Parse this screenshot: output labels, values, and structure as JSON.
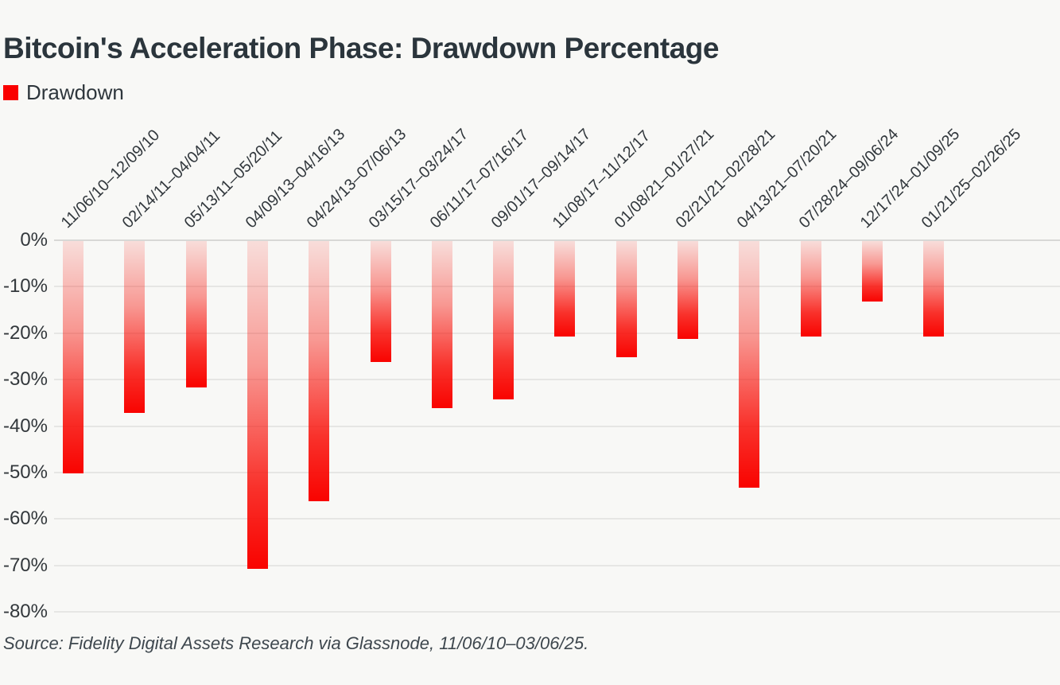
{
  "title": "Bitcoin's Acceleration Phase: Drawdown Percentage",
  "legend": {
    "label": "Drawdown",
    "color": "#fa0000"
  },
  "source": "Source: Fidelity Digital Assets Research via Glassnode, 11/06/10–03/06/25.",
  "colors": {
    "background": "#f8f8f6",
    "bar_red": "#f90300",
    "bar_top_tint": "#f8dbd8",
    "gridline": "#e6e6e4",
    "zero_line": "#d8d8d6",
    "title_text": "#2b353c",
    "axis_text": "#33383c"
  },
  "chart_data": {
    "type": "bar",
    "orientation": "vertical-negative",
    "title": "Bitcoin's Acceleration Phase: Drawdown Percentage",
    "categories": [
      "11/06/10–12/09/10",
      "02/14/11–04/04/11",
      "05/13/11–05/20/11",
      "04/09/13–04/16/13",
      "04/24/13–07/06/13",
      "03/15/17–03/24/17",
      "06/11/17–07/16/17",
      "09/01/17–09/14/17",
      "11/08/17–11/12/17",
      "01/08/21–01/27/21",
      "02/21/21–02/28/21",
      "04/13/21–07/20/21",
      "07/28/24–09/06/24",
      "12/17/24–01/09/25",
      "01/21/25–02/26/25"
    ],
    "series": [
      {
        "name": "Drawdown",
        "values": [
          -50,
          -37,
          -31.5,
          -70.5,
          -56,
          -26,
          -36,
          -34,
          -20.5,
          -25,
          -21,
          -53,
          -20.5,
          -13,
          -20.5
        ]
      }
    ],
    "xlabel": "",
    "ylabel": "",
    "ylim": [
      -80,
      0
    ],
    "ytick_labels": [
      "0%",
      "-10%",
      "-20%",
      "-30%",
      "-40%",
      "-50%",
      "-60%",
      "-70%",
      "-80%"
    ],
    "ytick_values": [
      0,
      -10,
      -20,
      -30,
      -40,
      -50,
      -60,
      -70,
      -80
    ],
    "grid": true,
    "legend_position": "top-left",
    "bar_gradient": [
      "#f8dbd8",
      "#f90300"
    ],
    "x_label_rotation_deg": 45
  }
}
